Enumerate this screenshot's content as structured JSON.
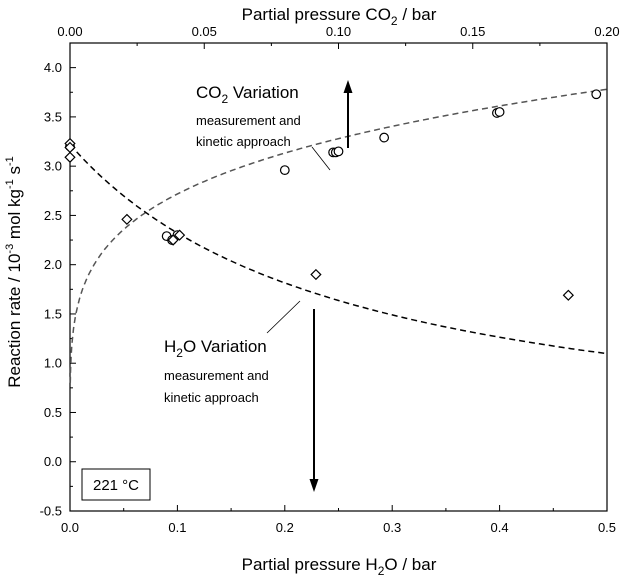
{
  "chart_data": {
    "type": "scatter",
    "x_bottom": {
      "label_main": "Partial pressure H",
      "label_sub": "2",
      "label_tail": "O / bar",
      "range": [
        0,
        0.5
      ],
      "ticks": [
        0.0,
        0.1,
        0.2,
        0.3,
        0.4,
        0.5
      ],
      "tick_labels": [
        "0.0",
        "0.1",
        "0.2",
        "0.3",
        "0.4",
        "0.5"
      ]
    },
    "x_top": {
      "label_main": "Partial pressure CO",
      "label_sub": "2",
      "label_tail": " / bar",
      "range": [
        0,
        0.2
      ],
      "ticks": [
        0.0,
        0.05,
        0.1,
        0.15,
        0.2
      ],
      "tick_labels": [
        "0.00",
        "0.05",
        "0.10",
        "0.15",
        "0.20"
      ]
    },
    "y": {
      "label_main": "Reaction rate / 10",
      "label_exp1": "-3",
      "label_mid": " mol kg",
      "label_exp2": "-1",
      "label_mid2": " s",
      "label_exp3": "-1",
      "range": [
        -0.5,
        4.25
      ],
      "ticks": [
        -0.5,
        0.0,
        0.5,
        1.0,
        1.5,
        2.0,
        2.5,
        3.0,
        3.5,
        4.0
      ],
      "tick_labels": [
        "-0.5",
        "0.0",
        "0.5",
        "1.0",
        "1.5",
        "2.0",
        "2.5",
        "3.0",
        "3.5",
        "4.0"
      ]
    },
    "series": [
      {
        "marker": "circle",
        "axis": "top",
        "x": [
          0.0,
          0.036,
          0.038,
          0.04,
          0.08,
          0.098,
          0.099,
          0.1,
          0.117,
          0.159,
          0.16,
          0.196
        ],
        "y": [
          3.2,
          2.29,
          2.25,
          2.3,
          2.96,
          3.14,
          3.14,
          3.15,
          3.29,
          3.54,
          3.55,
          3.73
        ]
      },
      {
        "marker": "diamond",
        "axis": "bottom",
        "x": [
          0.0,
          0.0,
          0.0,
          0.053,
          0.096,
          0.102,
          0.229,
          0.464
        ],
        "y": [
          3.23,
          3.19,
          3.09,
          2.46,
          2.25,
          2.3,
          1.9,
          1.69
        ]
      }
    ],
    "fit_co2": {
      "axis": "top",
      "a": 1.78,
      "b": 0.84
    },
    "fit_h2o": {
      "axis": "bottom",
      "y0": 3.22,
      "k": 3.87
    },
    "annotations": {
      "co2": {
        "title_main": "CO",
        "title_sub": "2",
        "title_tail": " Variation",
        "line1": "measurement and",
        "line2": "kinetic approach"
      },
      "h2o": {
        "title_main": "H",
        "title_sub": "2",
        "title_tail": "O Variation",
        "line1": "measurement and",
        "line2": "kinetic approach"
      }
    },
    "temperature_label": "221 °C",
    "grid": false,
    "legend": "none"
  }
}
